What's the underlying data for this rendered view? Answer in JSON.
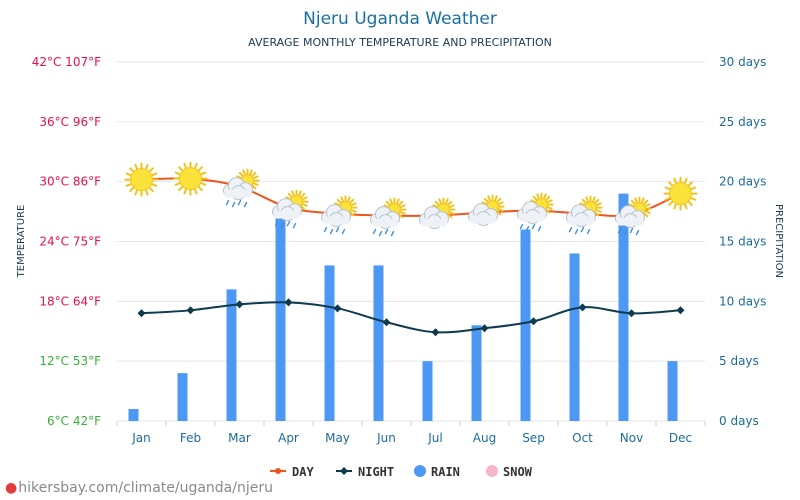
{
  "title": "Njeru Uganda Weather",
  "subtitle": "AVERAGE MONTHLY TEMPERATURE AND PRECIPITATION",
  "footer": "hikersbay.com/climate/uganda/njeru",
  "colors": {
    "title": "#1a6fa3",
    "day": "#f0541e",
    "night": "#0e3a4e",
    "rain": "#4e98f5",
    "snow": "#f7b7c8",
    "axis_text": "#1e6b9c",
    "grid": "#e6e6e6"
  },
  "chart_data": {
    "type": "bar",
    "title": "Njeru Uganda Weather",
    "subtitle": "AVERAGE MONTHLY TEMPERATURE AND PRECIPITATION",
    "categories": [
      "Jan",
      "Feb",
      "Mar",
      "Apr",
      "May",
      "Jun",
      "Jul",
      "Aug",
      "Sep",
      "Oct",
      "Nov",
      "Dec"
    ],
    "y_left": {
      "label": "TEMPERATURE",
      "range": [
        6,
        42
      ],
      "ticks": [
        {
          "value": 42,
          "label": "42°C 107°F",
          "color": "#e8104a"
        },
        {
          "value": 36,
          "label": "36°C 96°F",
          "color": "#e8104a"
        },
        {
          "value": 30,
          "label": "30°C 86°F",
          "color": "#e8104a"
        },
        {
          "value": 24,
          "label": "24°C 75°F",
          "color": "#e8104a"
        },
        {
          "value": 18,
          "label": "18°C 64°F",
          "color": "#e8104a"
        },
        {
          "value": 12,
          "label": "12°C 53°F",
          "color": "#38b23a"
        },
        {
          "value": 6,
          "label": "6°C 42°F",
          "color": "#38b23a"
        }
      ]
    },
    "y_right": {
      "label": "PRECIPITATION",
      "range": [
        0,
        30
      ],
      "ticks": [
        {
          "value": 30,
          "label": "30 days"
        },
        {
          "value": 25,
          "label": "25 days"
        },
        {
          "value": 20,
          "label": "20 days"
        },
        {
          "value": 15,
          "label": "15 days"
        },
        {
          "value": 10,
          "label": "10 days"
        },
        {
          "value": 5,
          "label": "5 days"
        },
        {
          "value": 0,
          "label": "0 days"
        }
      ]
    },
    "series": [
      {
        "name": "DAY",
        "kind": "line",
        "axis": "left",
        "values": [
          30.2,
          30.3,
          29.5,
          27.4,
          26.8,
          26.6,
          26.6,
          26.9,
          27.1,
          26.8,
          26.7,
          28.8
        ]
      },
      {
        "name": "NIGHT",
        "kind": "line",
        "axis": "left",
        "values": [
          16.8,
          17.1,
          17.7,
          17.9,
          17.3,
          15.9,
          14.9,
          15.3,
          16.0,
          17.4,
          16.8,
          17.1
        ]
      },
      {
        "name": "RAIN",
        "kind": "bar",
        "axis": "right",
        "values": [
          1,
          4,
          11,
          17,
          13,
          13,
          5,
          8,
          16,
          14,
          19,
          5
        ]
      },
      {
        "name": "SNOW",
        "kind": "bar",
        "axis": "right",
        "values": [
          0,
          0,
          0,
          0,
          0,
          0,
          0,
          0,
          0,
          0,
          0,
          0
        ]
      }
    ],
    "weather_icons": [
      "sun",
      "sun",
      "sun-cloud-rain",
      "sun-cloud-rain",
      "sun-cloud-rain",
      "sun-cloud-rain",
      "sun-cloud",
      "sun-cloud",
      "sun-cloud-rain",
      "sun-cloud-rain",
      "sun-cloud-rain",
      "sun"
    ],
    "legend": {
      "placement": "bottom",
      "items": [
        "DAY",
        "NIGHT",
        "RAIN",
        "SNOW"
      ]
    },
    "grid": true
  }
}
